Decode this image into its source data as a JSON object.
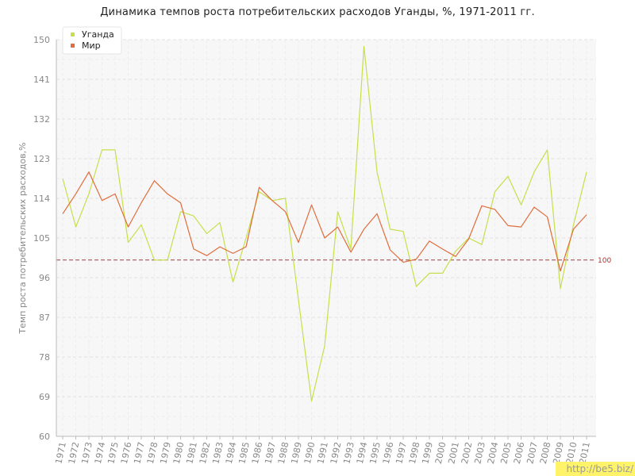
{
  "chart_data": {
    "type": "line",
    "title": "Динамика темпов роста потребительских расходов Уганды, %, 1971-2011 гг.",
    "ylabel": "Темп роста потребительских расходов,%",
    "xlabel": "",
    "ylim": [
      60,
      150
    ],
    "yticks": [
      60,
      69,
      78,
      87,
      96,
      105,
      114,
      123,
      132,
      141,
      150
    ],
    "x": [
      "1971",
      "1972",
      "1973",
      "1974",
      "1975",
      "1976",
      "1977",
      "1978",
      "1979",
      "1980",
      "1981",
      "1982",
      "1983",
      "1984",
      "1985",
      "1986",
      "1987",
      "1988",
      "1989",
      "1990",
      "1991",
      "1992",
      "1993",
      "1994",
      "1995",
      "1996",
      "1997",
      "1998",
      "1999",
      "2000",
      "2001",
      "2002",
      "2003",
      "2004",
      "2005",
      "2006",
      "2007",
      "2008",
      "2009",
      "2010",
      "2011"
    ],
    "reference_line": {
      "value": 100,
      "label": "100",
      "color": "#a33a3a"
    },
    "legend_position": "top-left",
    "grid": true,
    "series": [
      {
        "name": "Уганда",
        "color": "#c5e04a",
        "values": [
          118.5,
          107.5,
          115,
          125,
          125,
          104,
          108,
          100,
          100,
          111,
          110,
          106,
          108.5,
          95,
          105,
          115.5,
          113.5,
          114,
          91,
          68,
          80.5,
          111,
          102.5,
          148.5,
          120,
          107,
          106.5,
          94,
          97,
          97,
          102,
          105,
          103.5,
          115.5,
          119,
          112.5,
          120,
          125,
          93.5,
          108,
          120
        ]
      },
      {
        "name": "Мир",
        "color": "#e06d3c",
        "values": [
          110.5,
          115,
          120,
          113.5,
          115,
          107.5,
          113,
          118,
          115,
          113,
          102.5,
          101,
          103,
          101.5,
          103,
          116.5,
          113.5,
          111,
          104,
          112.5,
          105,
          107.5,
          101.8,
          107,
          110.5,
          102.3,
          99.5,
          100.2,
          104.3,
          102.5,
          100.8,
          104.8,
          112.3,
          111.5,
          107.8,
          107.5,
          112,
          109.8,
          97.5,
          107,
          110.3
        ]
      }
    ]
  },
  "watermark": "http://be5.biz/"
}
